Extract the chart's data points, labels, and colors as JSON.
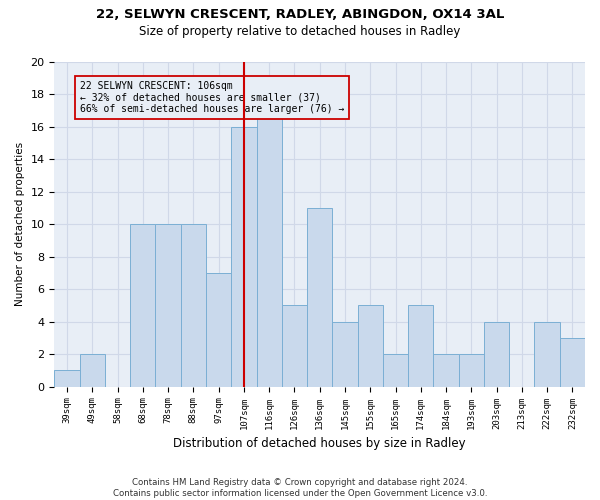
{
  "title1": "22, SELWYN CRESCENT, RADLEY, ABINGDON, OX14 3AL",
  "title2": "Size of property relative to detached houses in Radley",
  "xlabel": "Distribution of detached houses by size in Radley",
  "ylabel": "Number of detached properties",
  "categories": [
    "39sqm",
    "49sqm",
    "58sqm",
    "68sqm",
    "78sqm",
    "88sqm",
    "97sqm",
    "107sqm",
    "116sqm",
    "126sqm",
    "136sqm",
    "145sqm",
    "155sqm",
    "165sqm",
    "174sqm",
    "184sqm",
    "193sqm",
    "203sqm",
    "213sqm",
    "222sqm",
    "232sqm"
  ],
  "values": [
    1,
    2,
    0,
    10,
    10,
    10,
    7,
    16,
    17,
    5,
    11,
    4,
    5,
    2,
    5,
    2,
    2,
    4,
    0,
    4,
    3
  ],
  "bar_color": "#c9d9ec",
  "bar_edgecolor": "#7bafd4",
  "highlight_index": 7,
  "highlight_line_color": "#cc0000",
  "annotation_text": "22 SELWYN CRESCENT: 106sqm\n← 32% of detached houses are smaller (37)\n66% of semi-detached houses are larger (76) →",
  "annotation_box_edgecolor": "#cc0000",
  "ylim": [
    0,
    20
  ],
  "yticks": [
    0,
    2,
    4,
    6,
    8,
    10,
    12,
    14,
    16,
    18,
    20
  ],
  "footnote": "Contains HM Land Registry data © Crown copyright and database right 2024.\nContains public sector information licensed under the Open Government Licence v3.0.",
  "grid_color": "#d0d8e8",
  "bg_color": "#e8eef6",
  "plot_bg": "#e8eef6",
  "fig_bg": "#ffffff"
}
